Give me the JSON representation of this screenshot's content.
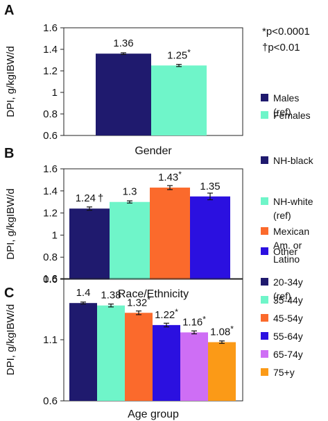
{
  "annotations": {
    "sig1": "*p<0.0001",
    "sig2": "†p<0.01"
  },
  "chart_data": [
    {
      "panel_label": "A",
      "type": "bar",
      "xlabel": "Gender",
      "ylabel": "DPI, g/kgIBW/d",
      "ylim": [
        0.6,
        1.6
      ],
      "yticks": [
        "0.6",
        "0.8",
        "1",
        "1.2",
        "1.4",
        "1.6"
      ],
      "grid": false,
      "legend": "right",
      "series": [
        {
          "name": "Males (ref)",
          "value": 1.36,
          "error": 0.008,
          "label": "1.36",
          "marker": "",
          "color": "#1f1a6e"
        },
        {
          "name": "Females",
          "value": 1.25,
          "error": 0.01,
          "label": "1.25",
          "marker": "*",
          "color": "#6ff5c9"
        }
      ]
    },
    {
      "panel_label": "B",
      "type": "bar",
      "xlabel": "Race/Ethnicity",
      "ylabel": "DPI, g/kgIBW/d",
      "ylim": [
        0.6,
        1.6
      ],
      "yticks": [
        "0.6",
        "0.8",
        "1",
        "1.2",
        "1.4",
        "1.6"
      ],
      "grid": false,
      "legend": "right",
      "series": [
        {
          "name": "NH-black",
          "value": 1.24,
          "error": 0.015,
          "label": "1.24",
          "marker": "†",
          "color": "#1f1a6e"
        },
        {
          "name": "NH-white (ref)",
          "value": 1.3,
          "error": 0.01,
          "label": "1.3",
          "marker": "",
          "color": "#6ff5c9"
        },
        {
          "name": "Mexican Am. or Latino",
          "value": 1.43,
          "error": 0.018,
          "label": "1.43",
          "marker": "*",
          "color": "#fb6a2c"
        },
        {
          "name": "Other",
          "value": 1.35,
          "error": 0.03,
          "label": "1.35",
          "marker": "",
          "color": "#2b10e0"
        }
      ]
    },
    {
      "panel_label": "C",
      "type": "bar",
      "xlabel": "Age group",
      "ylabel": "DPI, g/kgIBW/d",
      "ylim": [
        0.6,
        1.6
      ],
      "yticks": [
        "0.6",
        "1.1",
        "1.6"
      ],
      "grid": false,
      "legend": "right",
      "series": [
        {
          "name": "20-34y (ref)",
          "value": 1.4,
          "error": 0.008,
          "label": "1.4",
          "marker": "",
          "color": "#1f1a6e"
        },
        {
          "name": "35-44y",
          "value": 1.38,
          "error": 0.012,
          "label": "1.38",
          "marker": "",
          "color": "#6ff5c9"
        },
        {
          "name": "45-54y",
          "value": 1.32,
          "error": 0.015,
          "label": "1.32",
          "marker": "*",
          "color": "#fb6a2c"
        },
        {
          "name": "55-64y",
          "value": 1.22,
          "error": 0.015,
          "label": "1.22",
          "marker": "*",
          "color": "#2b10e0"
        },
        {
          "name": "65-74y",
          "value": 1.16,
          "error": 0.012,
          "label": "1.16",
          "marker": "*",
          "color": "#ce6ef5"
        },
        {
          "name": "75+y",
          "value": 1.08,
          "error": 0.01,
          "label": "1.08",
          "marker": "*",
          "color": "#fb9a17"
        }
      ]
    }
  ]
}
